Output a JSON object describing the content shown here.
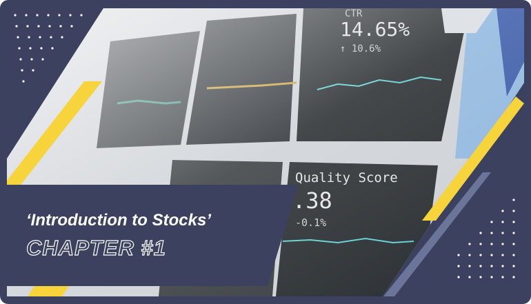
{
  "title": "‘Introduction to Stocks’",
  "subtitle": "CHAPTER #1",
  "photo": {
    "ctr_label": "CTR",
    "ctr_value": "14.65%",
    "ctr_change": "↑ 10.6%",
    "quality_label": "Quality Score",
    "quality_value": ".38",
    "quality_change": "-0.1%"
  }
}
